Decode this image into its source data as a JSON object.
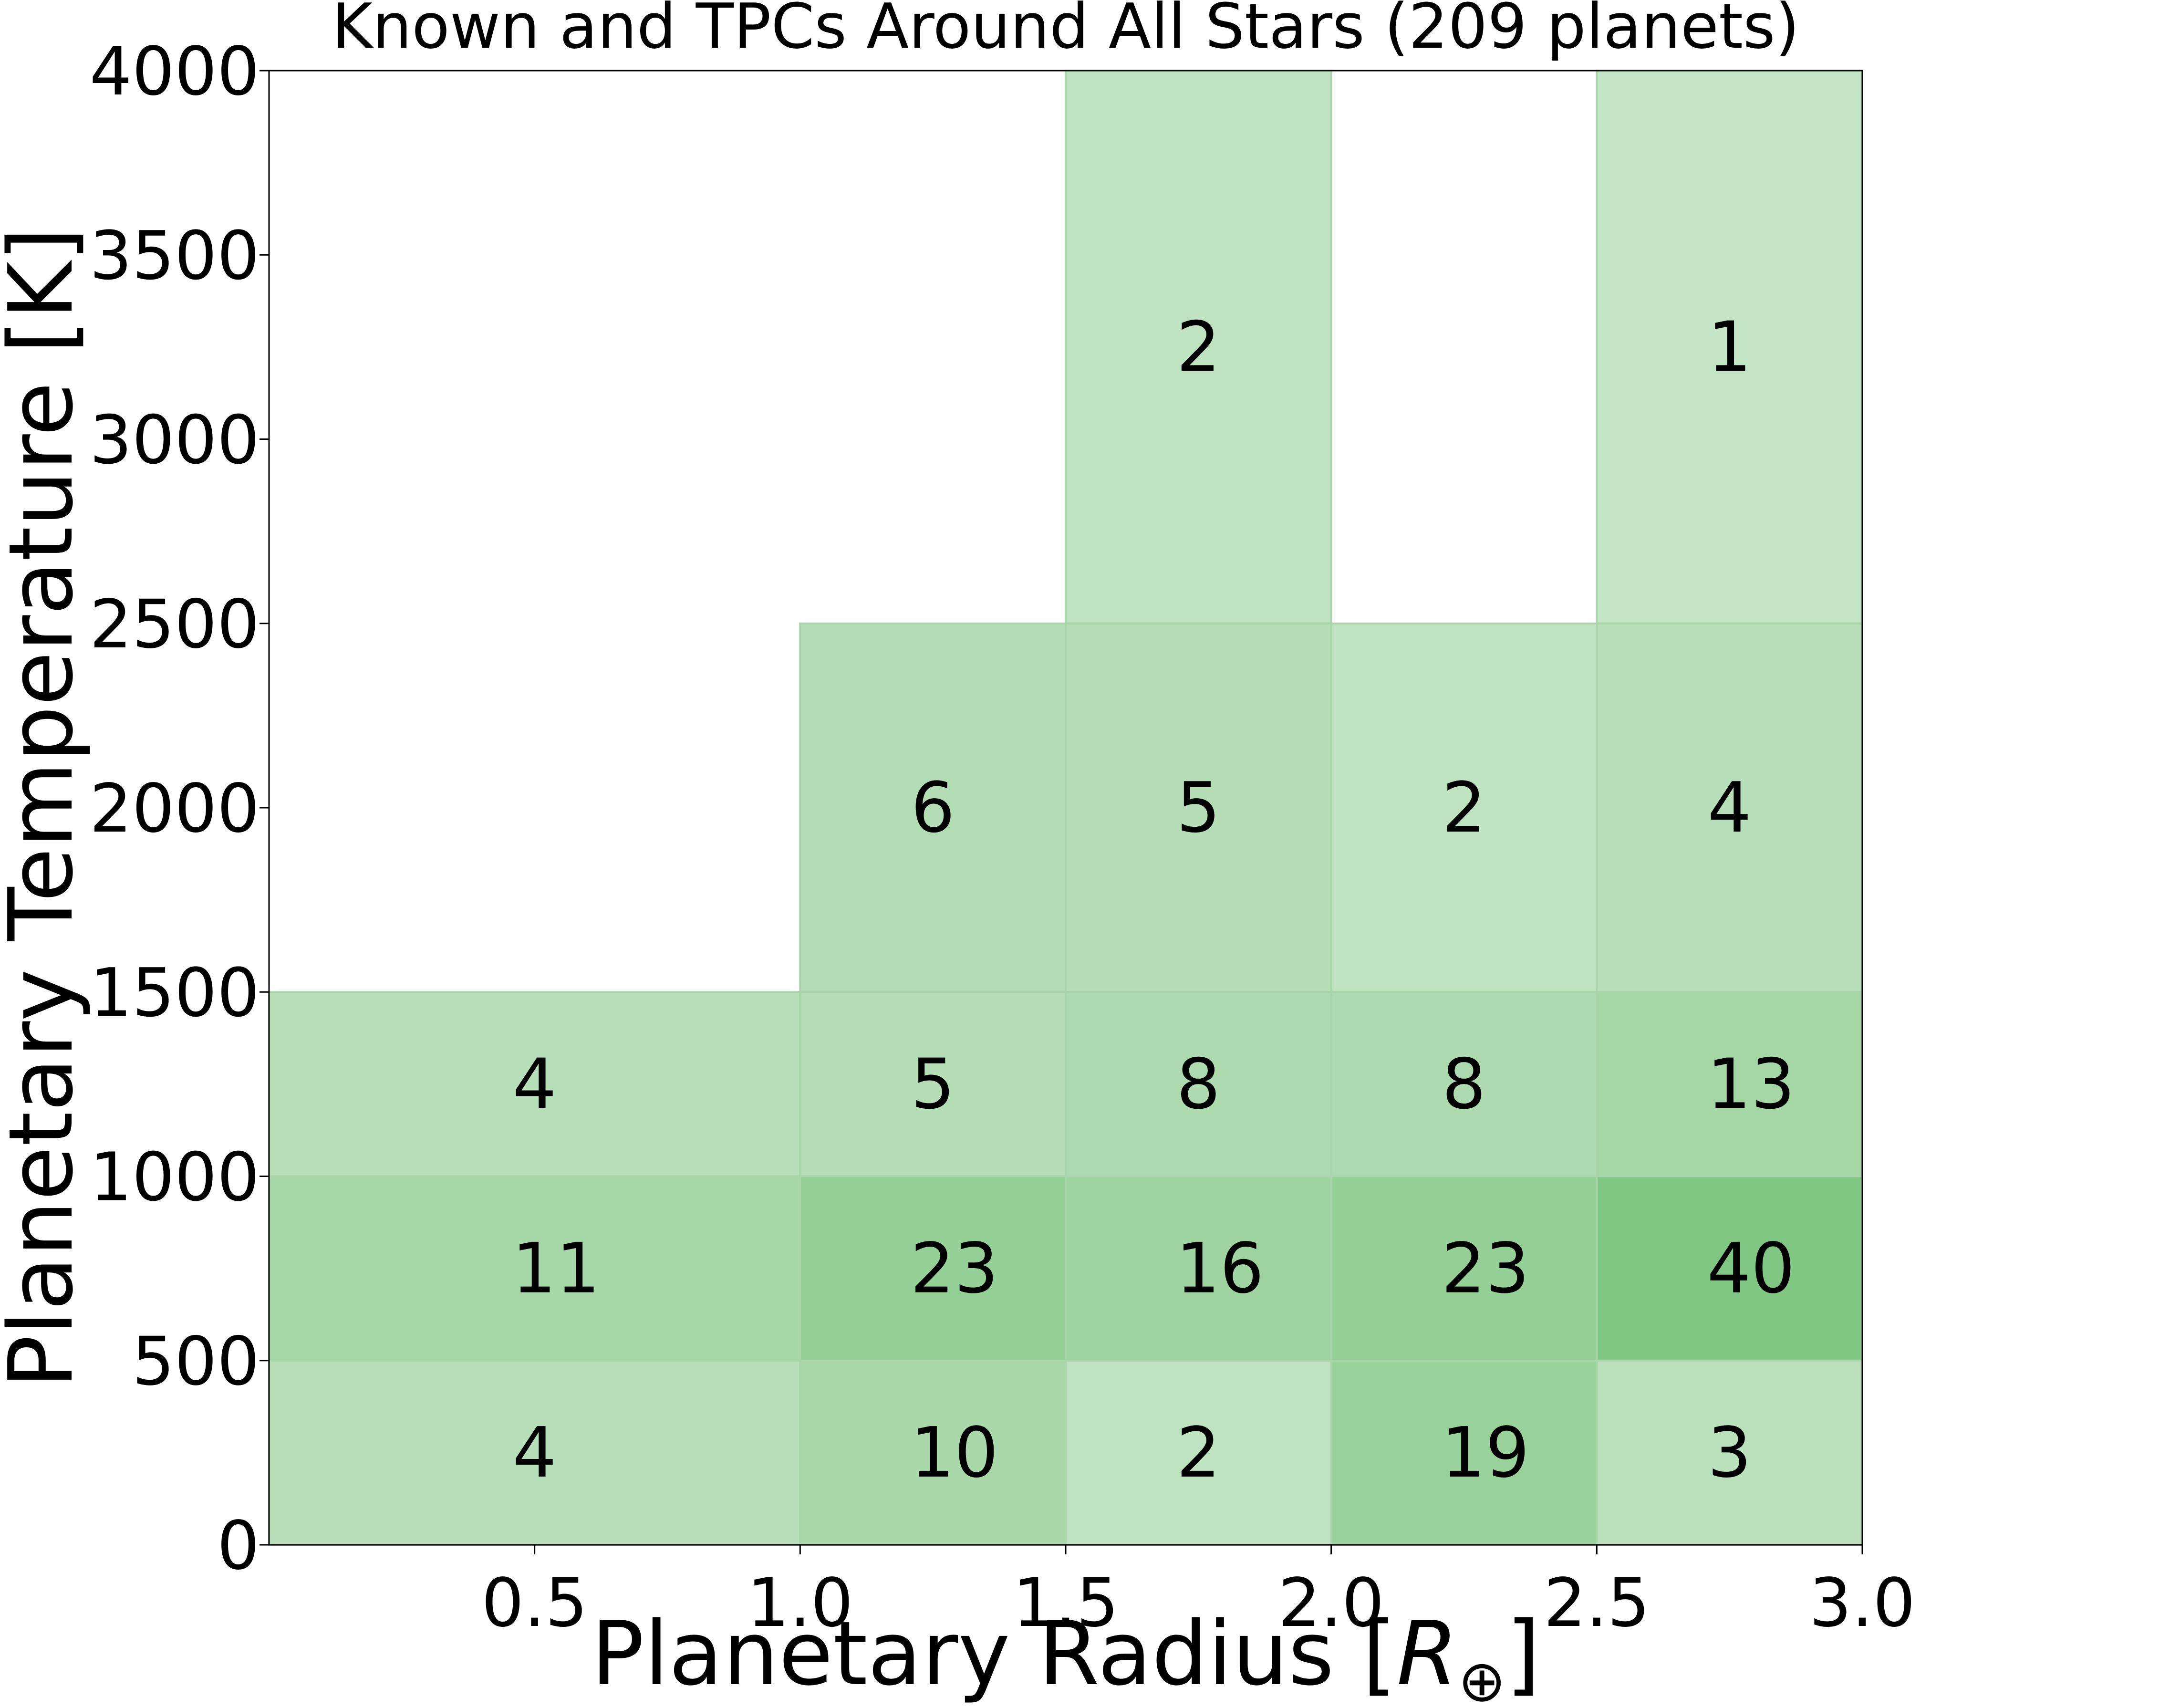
{
  "chart_data": {
    "type": "heatmap",
    "title": "Known and TPCs Around All Stars (209 planets)",
    "xlabel_main": "Planetary Radius [",
    "xlabel_symbol": "R",
    "xlabel_subscript": "⊕",
    "xlabel_close": "]",
    "ylabel": "Planetary Temperature [K]",
    "xlim": [
      0,
      3.0
    ],
    "ylim": [
      0,
      4000
    ],
    "x_ticks": [
      "0.5",
      "1.0",
      "1.5",
      "2.0",
      "2.5",
      "3.0"
    ],
    "y_ticks": [
      "0",
      "500",
      "1000",
      "1500",
      "2000",
      "2500",
      "3000",
      "3500",
      "4000"
    ],
    "cells": [
      {
        "x": [
          0,
          1.0
        ],
        "y": [
          0,
          500
        ],
        "count": 4,
        "label": "4"
      },
      {
        "x": [
          0,
          1.0
        ],
        "y": [
          500,
          1000
        ],
        "count": 11,
        "label": "11"
      },
      {
        "x": [
          0,
          1.0
        ],
        "y": [
          1000,
          1500
        ],
        "count": 4,
        "label": "4"
      },
      {
        "x": [
          1.0,
          1.5
        ],
        "y": [
          0,
          500
        ],
        "count": 10,
        "label": "10"
      },
      {
        "x": [
          1.0,
          1.5
        ],
        "y": [
          500,
          1000
        ],
        "count": 23,
        "label": "23"
      },
      {
        "x": [
          1.0,
          1.5
        ],
        "y": [
          1000,
          1500
        ],
        "count": 5,
        "label": "5"
      },
      {
        "x": [
          1.0,
          1.5
        ],
        "y": [
          1500,
          2500
        ],
        "count": 6,
        "label": "6"
      },
      {
        "x": [
          1.5,
          2.0
        ],
        "y": [
          0,
          500
        ],
        "count": 2,
        "label": "2"
      },
      {
        "x": [
          1.5,
          2.0
        ],
        "y": [
          500,
          1000
        ],
        "count": 16,
        "label": "16"
      },
      {
        "x": [
          1.5,
          2.0
        ],
        "y": [
          1000,
          1500
        ],
        "count": 8,
        "label": "8"
      },
      {
        "x": [
          1.5,
          2.0
        ],
        "y": [
          1500,
          2500
        ],
        "count": 5,
        "label": "5"
      },
      {
        "x": [
          1.5,
          2.0
        ],
        "y": [
          2500,
          4000
        ],
        "count": 2,
        "label": "2"
      },
      {
        "x": [
          2.0,
          2.5
        ],
        "y": [
          0,
          500
        ],
        "count": 19,
        "label": "19"
      },
      {
        "x": [
          2.0,
          2.5
        ],
        "y": [
          500,
          1000
        ],
        "count": 23,
        "label": "23"
      },
      {
        "x": [
          2.0,
          2.5
        ],
        "y": [
          1000,
          1500
        ],
        "count": 8,
        "label": "8"
      },
      {
        "x": [
          2.0,
          2.5
        ],
        "y": [
          1500,
          2500
        ],
        "count": 2,
        "label": "2"
      },
      {
        "x": [
          2.5,
          3.0
        ],
        "y": [
          0,
          500
        ],
        "count": 3,
        "label": "3"
      },
      {
        "x": [
          2.5,
          3.0
        ],
        "y": [
          500,
          1000
        ],
        "count": 40,
        "label": "40"
      },
      {
        "x": [
          2.5,
          3.0
        ],
        "y": [
          1000,
          1500
        ],
        "count": 13,
        "label": "13"
      },
      {
        "x": [
          2.5,
          3.0
        ],
        "y": [
          1500,
          2500
        ],
        "count": 4,
        "label": "4"
      },
      {
        "x": [
          2.5,
          3.0
        ],
        "y": [
          2500,
          4000
        ],
        "count": 1,
        "label": "1"
      }
    ],
    "colors": {
      "base": "#4caf50",
      "text": "#000000",
      "axis": "#000000"
    },
    "grid": false
  }
}
